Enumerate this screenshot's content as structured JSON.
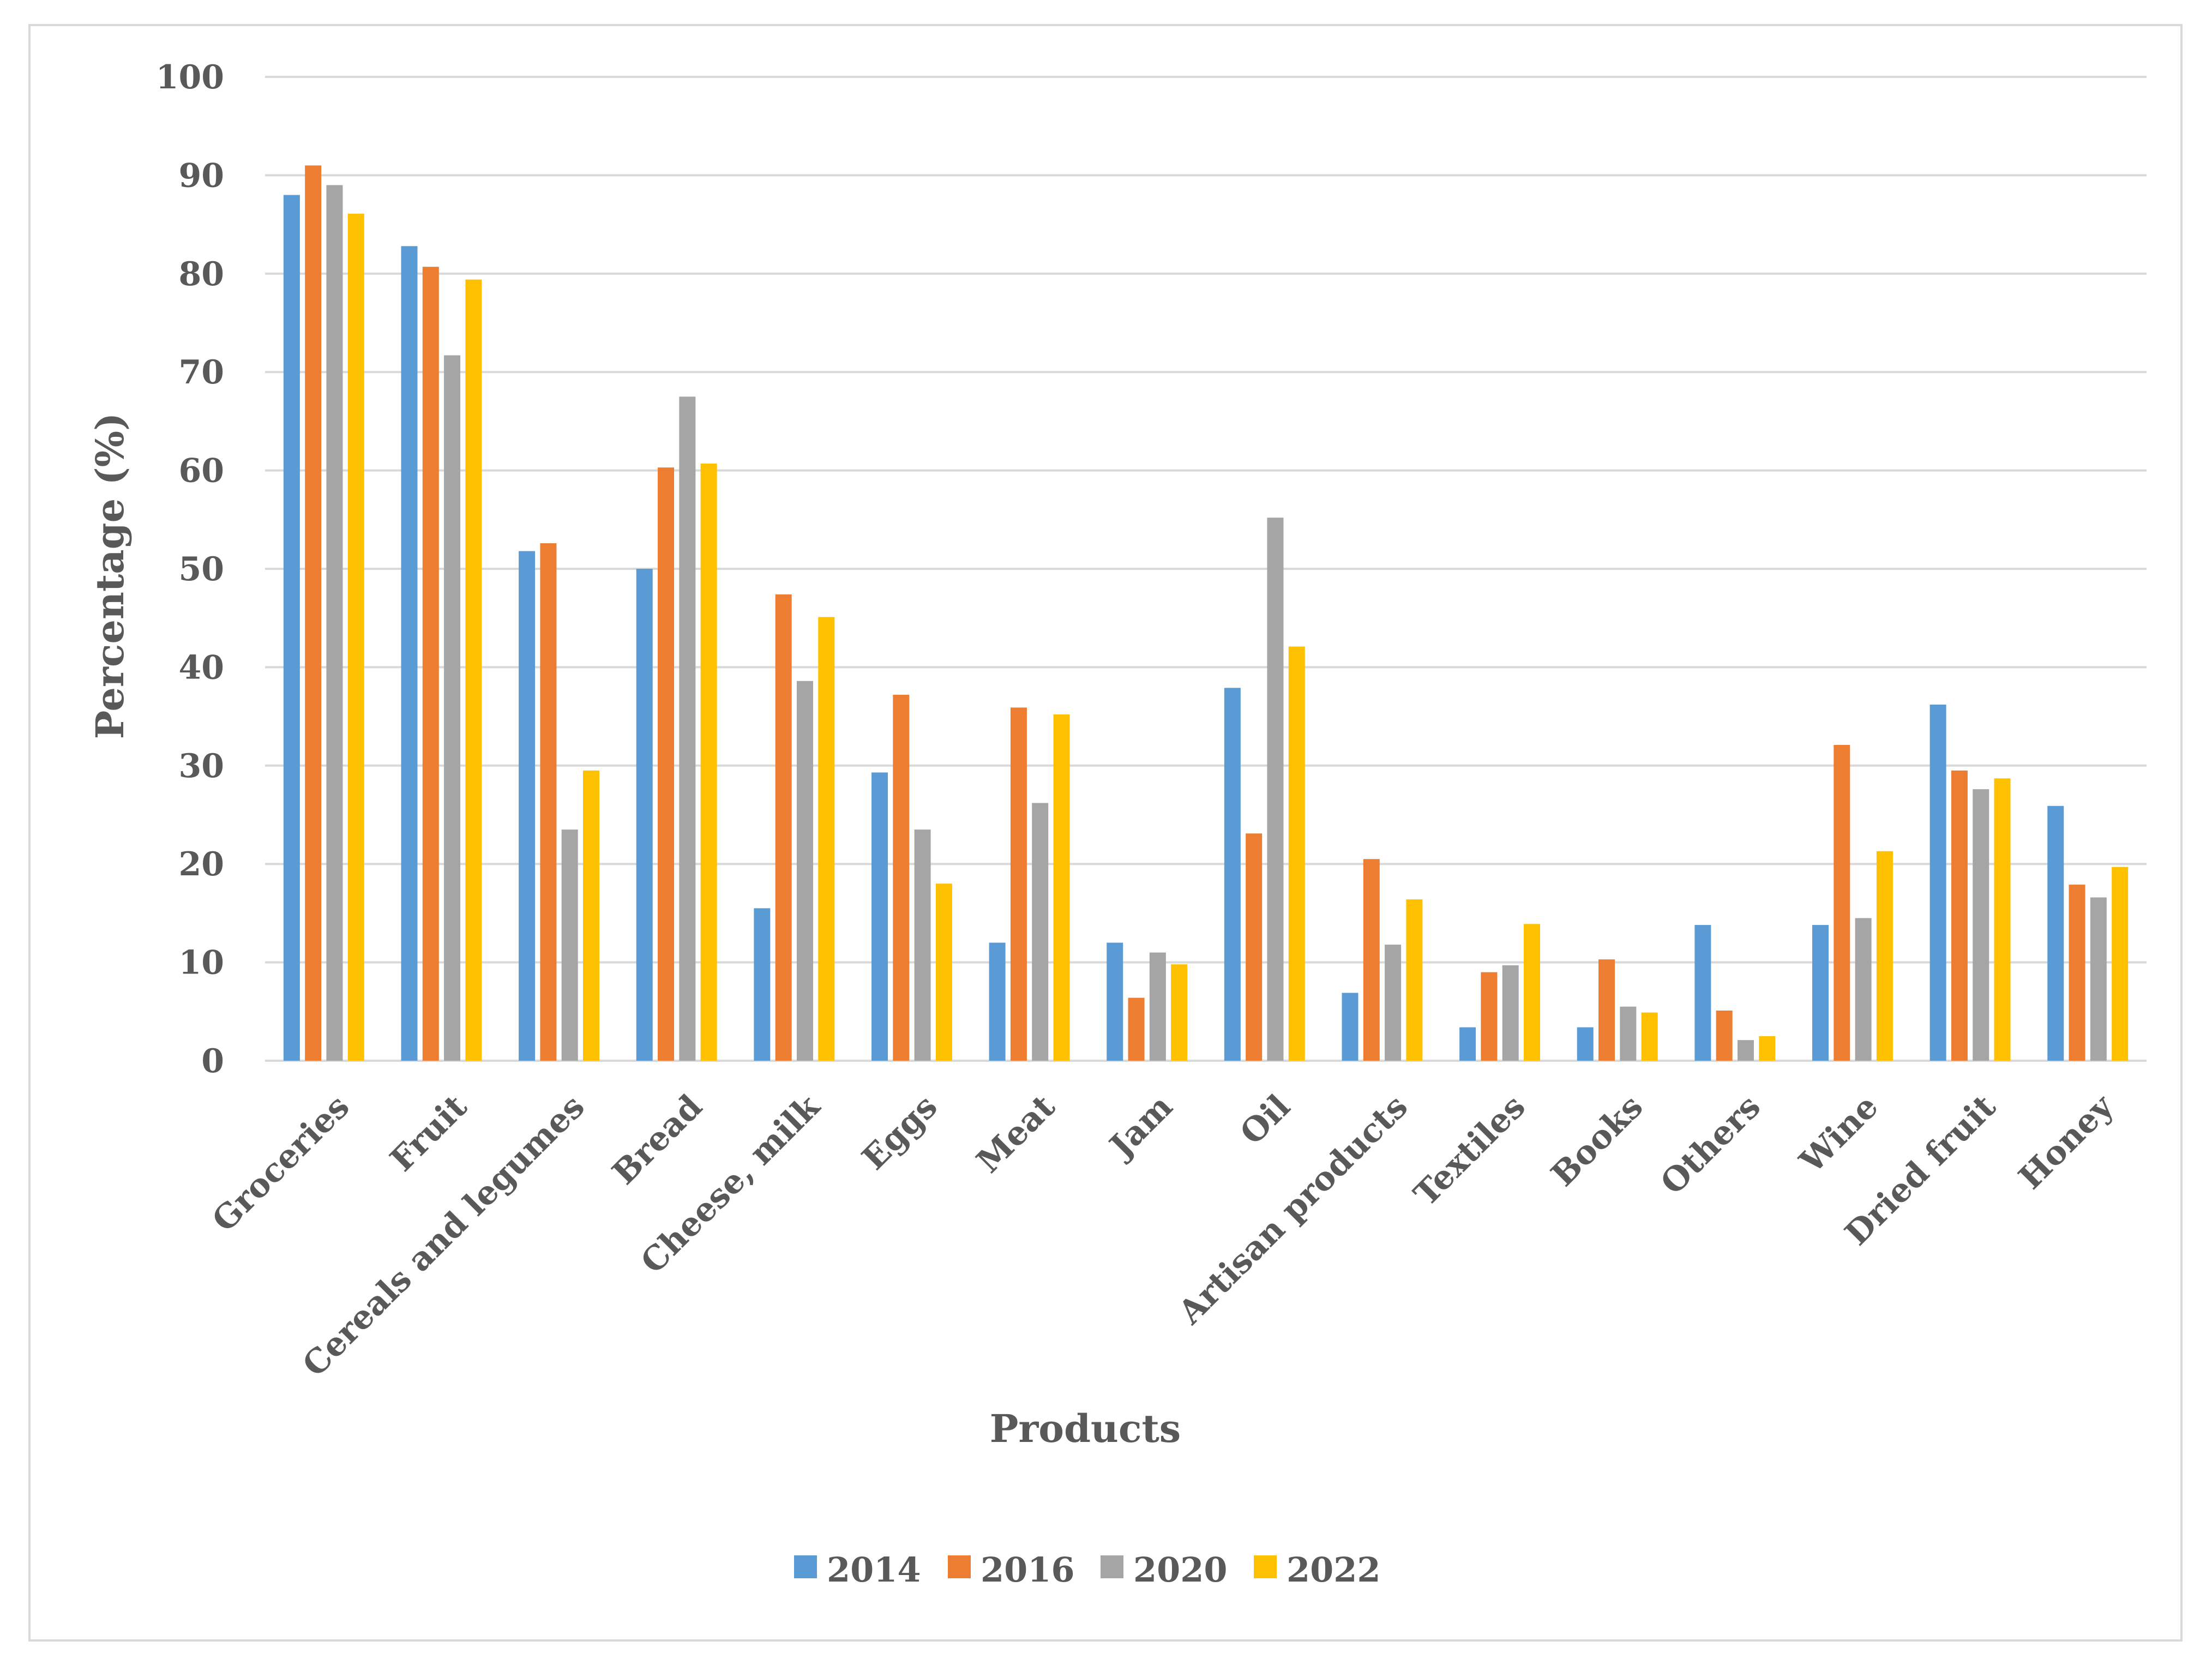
{
  "chart_data": {
    "type": "bar",
    "title": "",
    "xlabel": "Products",
    "ylabel": "Percentage (%)",
    "ylim": [
      0,
      100
    ],
    "yticks": [
      0,
      10,
      20,
      30,
      40,
      50,
      60,
      70,
      80,
      90,
      100
    ],
    "grid": true,
    "legend_position": "bottom",
    "categories": [
      "Groceries",
      "Fruit",
      "Cereals and legumes",
      "Bread",
      "Cheese, milk",
      "Eggs",
      "Meat",
      "Jam",
      "Oil",
      "Artisan products",
      "Textiles",
      "Books",
      "Others",
      "Wine",
      "Dried fruit",
      "Honey"
    ],
    "series": [
      {
        "name": "2014",
        "color": "#5b9bd5",
        "values": [
          88,
          82.8,
          51.8,
          50,
          15.5,
          29.3,
          12,
          12,
          37.9,
          6.9,
          3.4,
          3.4,
          13.8,
          13.8,
          36.2,
          25.9
        ]
      },
      {
        "name": "2016",
        "color": "#ed7d31",
        "values": [
          91,
          80.7,
          52.6,
          60.3,
          47.4,
          37.2,
          35.9,
          6.4,
          23.1,
          20.5,
          9,
          10.3,
          5.1,
          32.1,
          29.5,
          17.9
        ]
      },
      {
        "name": "2020",
        "color": "#a5a5a5",
        "values": [
          89,
          71.7,
          23.5,
          67.5,
          38.6,
          23.5,
          26.2,
          11,
          55.2,
          11.8,
          9.7,
          5.5,
          2.1,
          14.5,
          27.6,
          16.6
        ]
      },
      {
        "name": "2022",
        "color": "#ffc000",
        "values": [
          86.1,
          79.4,
          29.5,
          60.7,
          45.1,
          18,
          35.2,
          9.8,
          42.1,
          16.4,
          13.9,
          4.9,
          2.5,
          21.3,
          28.7,
          19.7
        ]
      }
    ]
  }
}
